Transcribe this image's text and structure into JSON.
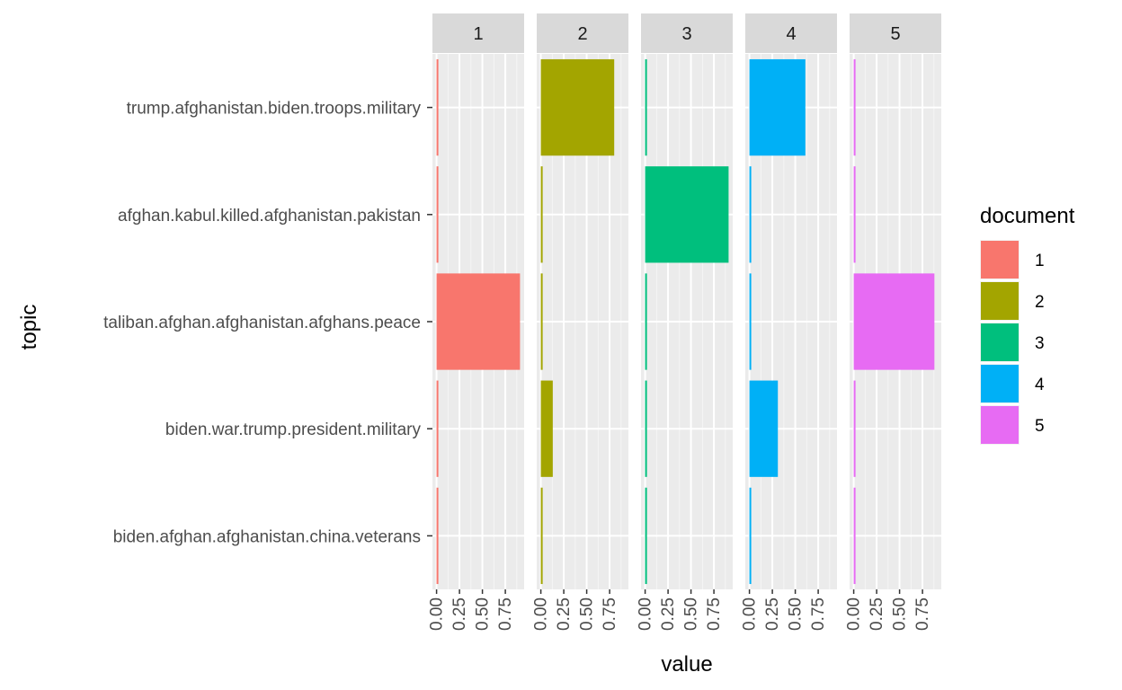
{
  "chart_data": {
    "type": "bar",
    "orientation": "horizontal",
    "facet_by": "document",
    "facets": [
      "1",
      "2",
      "3",
      "4",
      "5"
    ],
    "categories": [
      "trump.afghanistan.biden.troops.military",
      "afghan.kabul.killed.afghanistan.pakistan",
      "taliban.afghan.afghanistan.afghans.peace",
      "biden.war.trump.president.military",
      "biden.afghan.afghanistan.china.veterans"
    ],
    "series": [
      {
        "name": "1",
        "color": "#F8766D",
        "values": [
          0.003,
          0.003,
          0.91,
          0.003,
          0.003
        ]
      },
      {
        "name": "2",
        "color": "#A3A500",
        "values": [
          0.8,
          0.003,
          0.003,
          0.13,
          0.003
        ]
      },
      {
        "name": "3",
        "color": "#00BF7D",
        "values": [
          0.003,
          0.91,
          0.003,
          0.003,
          0.003
        ]
      },
      {
        "name": "4",
        "color": "#00B0F6",
        "values": [
          0.61,
          0.003,
          0.003,
          0.31,
          0.003
        ]
      },
      {
        "name": "5",
        "color": "#E76BF3",
        "values": [
          0.003,
          0.003,
          0.88,
          0.003,
          0.003
        ]
      }
    ],
    "xticks": [
      "0.00",
      "0.25",
      "0.50",
      "0.75"
    ],
    "xlim": [
      -0.045,
      0.955
    ],
    "xlabel": "value",
    "ylabel": "topic",
    "legend": {
      "title": "document",
      "position": "right"
    },
    "grid": true
  }
}
